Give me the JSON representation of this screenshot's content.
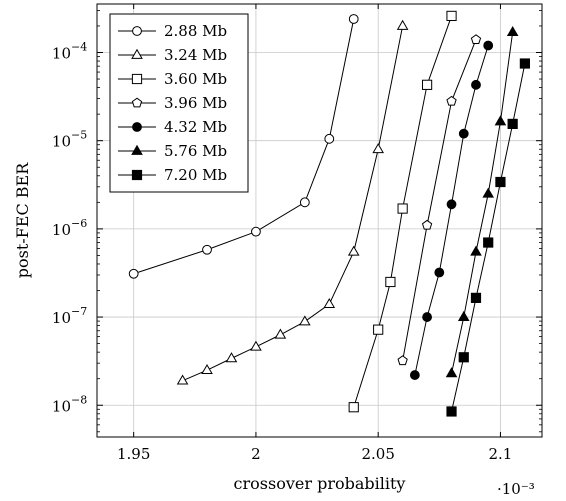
{
  "chart_data": {
    "type": "line",
    "xlabel": "crossover probability",
    "ylabel": "post-FEC BER",
    "x_multiplier_label": "·10⁻³",
    "x_scale_exponent": -3,
    "y_scale": "log",
    "xlim": [
      1.935,
      2.117
    ],
    "ylim_log10": [
      -8.36,
      -3.45
    ],
    "x_ticks": [
      1.95,
      2.0,
      2.05,
      2.1
    ],
    "x_tick_labels": [
      "1.95",
      "2",
      "2.05",
      "2.1"
    ],
    "y_ticks_exp": [
      -8,
      -7,
      -6,
      -5,
      -4
    ],
    "y_tick_labels": [
      "10",
      "10",
      "10",
      "10",
      "10"
    ],
    "y_tick_exponent_labels": [
      "−8",
      "−7",
      "−6",
      "−5",
      "−4"
    ],
    "grid": true,
    "legend_position": "top-left",
    "series": [
      {
        "name": "2.88 Mb",
        "marker": "circle-open",
        "x": [
          1.95,
          1.98,
          2.0,
          2.02,
          2.03,
          2.04
        ],
        "y": [
          3.1e-07,
          5.8e-07,
          9.3e-07,
          2e-06,
          1.05e-05,
          0.00024
        ]
      },
      {
        "name": "3.24 Mb",
        "marker": "triangle-open",
        "x": [
          1.97,
          1.98,
          1.99,
          2.0,
          2.01,
          2.02,
          2.03,
          2.04,
          2.05,
          2.06
        ],
        "y": [
          1.9e-08,
          2.5e-08,
          3.4e-08,
          4.6e-08,
          6.3e-08,
          8.9e-08,
          1.4e-07,
          5.5e-07,
          8e-06,
          0.0002
        ]
      },
      {
        "name": "3.60 Mb",
        "marker": "square-open",
        "x": [
          2.04,
          2.05,
          2.055,
          2.06,
          2.07,
          2.08
        ],
        "y": [
          9.5e-09,
          7.2e-08,
          2.5e-07,
          1.7e-06,
          4.3e-05,
          0.00026
        ]
      },
      {
        "name": "3.96 Mb",
        "marker": "pentagon-open",
        "x": [
          2.06,
          2.07,
          2.08,
          2.09
        ],
        "y": [
          3.2e-08,
          1.1e-06,
          2.8e-05,
          0.00014
        ]
      },
      {
        "name": "4.32 Mb",
        "marker": "circle-filled",
        "x": [
          2.065,
          2.07,
          2.075,
          2.08,
          2.085,
          2.09,
          2.095
        ],
        "y": [
          2.2e-08,
          1e-07,
          3.2e-07,
          1.9e-06,
          1.2e-05,
          4.3e-05,
          0.00012
        ]
      },
      {
        "name": "5.76 Mb",
        "marker": "triangle-filled",
        "x": [
          2.08,
          2.085,
          2.09,
          2.095,
          2.1,
          2.105
        ],
        "y": [
          2.3e-08,
          1e-07,
          5.5e-07,
          2.5e-06,
          1.65e-05,
          0.00017
        ]
      },
      {
        "name": "7.20 Mb",
        "marker": "square-filled",
        "x": [
          2.08,
          2.085,
          2.09,
          2.095,
          2.1,
          2.105,
          2.11
        ],
        "y": [
          8.5e-09,
          3.5e-08,
          1.65e-07,
          7e-07,
          3.4e-06,
          1.55e-05,
          7.5e-05
        ]
      }
    ]
  }
}
